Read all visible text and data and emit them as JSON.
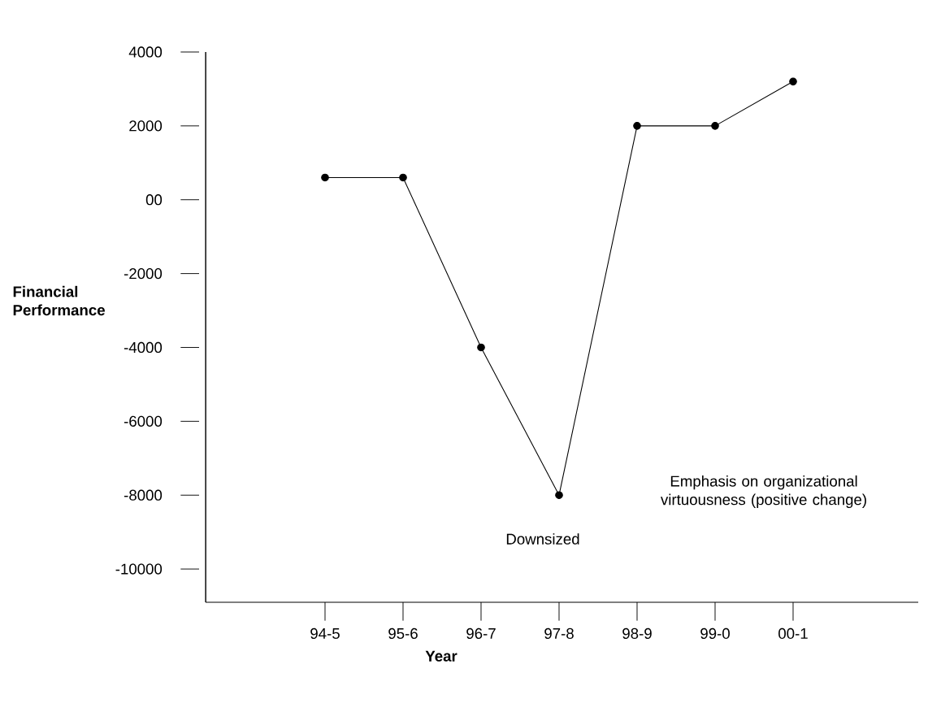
{
  "chart_data": {
    "type": "line",
    "xlabel": "Year",
    "ylabel": "Financial Performance",
    "categories": [
      "94-5",
      "95-6",
      "96-7",
      "97-8",
      "98-9",
      "99-0",
      "00-1"
    ],
    "values": [
      600,
      600,
      -4000,
      -8000,
      2000,
      2000,
      3200
    ],
    "color": "#000000",
    "marker": "circle",
    "line_style": "solid",
    "grid": false,
    "ylim": [
      -10900,
      4000
    ],
    "yticks": [
      4000,
      2000,
      {
        "value": 0,
        "label": "00"
      },
      -2000,
      -4000,
      -6000,
      -8000,
      -10000
    ],
    "annotations": [
      "Downsized",
      "Emphasis on organizational virtuousness (positive change)"
    ]
  }
}
